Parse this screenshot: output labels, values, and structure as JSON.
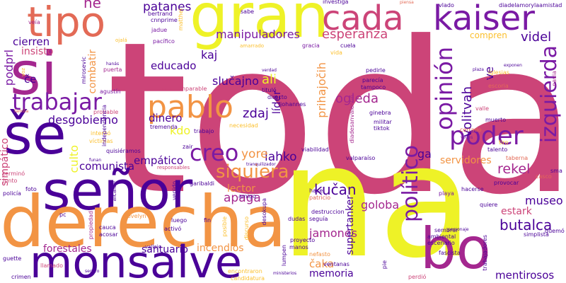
{
  "colors": {
    "background": "#ffffff",
    "purple": "#4a0098",
    "violet": "#7a1aa4",
    "magenta": "#a4278f",
    "pink": "#cc4478",
    "coral": "#e36a56",
    "orange": "#f29444",
    "amber": "#fbbf2c",
    "yellow": "#eef227"
  },
  "words": {
    "toda": "toda",
    "na": "na",
    "senor": "señor",
    "derecha": "derecha",
    "monsalve": "monsalve",
    "gran": "gran",
    "si": "si",
    "se": "še",
    "bo": "bo",
    "tipo": "tipo",
    "cada": "cada",
    "kaiser": "kaiser",
    "izquierda": "izquierda",
    "pablo": "pablo",
    "poder": "poder",
    "opinion": "opinión",
    "politico": "político",
    "trabajar": "trabajar",
    "creo": "creo",
    "siquiera": "siquiera",
    "esperanza": "esperanza",
    "manipuladores": "manipuladores",
    "patanes": "patanes",
    "ne": "ne",
    "videl": "videl",
    "rekel": "rekel",
    "butalca": "butalca",
    "kucan": "kučan",
    "ogleda": "ogleda",
    "slucajno": "slučajno",
    "educado": "educado",
    "kaj": "kaj",
    "zdaj": "zdaj",
    "ali": "ali",
    "prihajocih": "prihajočih",
    "lider": "líder",
    "volitvah": "volitvah",
    "ve": "ve",
    "desgobierno": "desgobierno",
    "dinero": "dinero",
    "kdo": "kdo",
    "empatico": "empático",
    "lahko": "lahko",
    "yore": "yore",
    "comunista": "comunista",
    "apaga": "apaga",
    "lector": "lector",
    "jamones": "jamones",
    "caka": "čaka",
    "memoria": "memoria",
    "incendios": "incendios",
    "santuario": "santuario",
    "forestales": "forestales",
    "mentirosos": "mentirosos",
    "goloba": "goloba",
    "museo": "museo",
    "estark": "estark",
    "servidores": "servidores",
    "supertanker": "supertanker",
    "cierren": "cierren",
    "insisto": "insisto",
    "podprl": "podprl",
    "ce": "če",
    "combatir": "combatir",
    "culto": "culto",
    "simpatico": "simpático",
    "ga": "ga",
    "compren": "compren",
    "diadelamoryla": "diadelamorylaamistad",
    "investiga": "investiga",
    "vlado": "vlado",
    "piensa": "piensa",
    "vela": "veía",
    "bertrand": "bertrand",
    "cnnprime": "cnnprime",
    "matthei": "matthei",
    "jadue": "jadue",
    "sabe": "sabe",
    "ojala": "ojalá",
    "pacifico": "pacífico",
    "gracia": "gracia",
    "cuela": "cuela",
    "vida": "vida",
    "amarrado": "amarrado",
    "hanas": "hanás",
    "puerta": "puerta",
    "mirosevic": "mirosevic",
    "voz": "voz",
    "agustin": "agustín",
    "kaiserimparable": "kaiserimparable",
    "titulo": "tituló",
    "directo": "directo",
    "johannes": "johannes",
    "paricia": "parecía",
    "tampoco": "tampoco",
    "pedirle": "pedirle",
    "verdad": "verdad",
    "iglesias": "iglesias",
    "verdadero": "verdadero",
    "escoria": "escoria",
    "navia": "navia",
    "plaza": "plaza",
    "valle": "valle",
    "muerto": "muerto",
    "cerrado": "cerrado",
    "veces": "veces",
    "tiro": "tiro",
    "talento": "talento",
    "taberna": "taberna",
    "sma": "sma",
    "casco": "casco",
    "ginebra": "ginebra",
    "militar": "militar",
    "tiktok": "tiktok",
    "necesidad": "necesidad",
    "diadesanvalentin": "diadesanvalentin",
    "familia": "familia",
    "termino": "terminó",
    "junto": "junto",
    "policia": "policía",
    "foto": "foto",
    "probable": "probable",
    "intento": "intentó",
    "victimas": "víctimas",
    "independencia": "independencia",
    "tremenda": "tremenda",
    "trabajo": "trabajo",
    "zair": "zair",
    "quisieramos": "quisiéramos",
    "funan": "funan",
    "viabilidad": "viabilidad",
    "valparaiso": "valparaíso",
    "garibaldi": "garibaldi",
    "alcalde": "alcalde",
    "venido": "venido",
    "responsables": "responsables",
    "tranquilizador": "tranquilizador",
    "amigo": "amigo",
    "fin": "fin",
    "hace": "hace",
    "patricio": "patricio",
    "playa": "playa",
    "hacerse": "hacerse",
    "quiere": "quiere",
    "pc": "pc",
    "evelyn": "evelyn",
    "cauca": "cauca",
    "acosar": "acosar",
    "activo": "activó",
    "luego": "luego",
    "posible": "posible",
    "discurso": "discurso",
    "desokupa": "desokupa",
    "dudas": "dudas",
    "seguia": "seguía",
    "destruccion": "destruccion",
    "ambiental": "ambiental",
    "escenario": "escenario",
    "manos": "manos",
    "fascista": "fascista",
    "nefasto": "nefasto",
    "lumpen": "lumpen",
    "encontraron": "encontraron",
    "candidatura": "candidatura",
    "crimen": "crimen",
    "llamado": "llamado",
    "perdio": "perdió",
    "vallejo": "vallejo",
    "propiedad": "propiedad",
    "guette": "guette",
    "seguro": "seguro",
    "simplista": "simplista",
    "quemo": "quemó",
    "trabajadores": "trabajadores",
    "sembrar": "sembrar",
    "personaje": "personaje",
    "exponen": "exponen",
    "provocar": "provocar",
    "ventanas": "ventanas",
    "pie": "pie",
    "ministerios": "ministerios",
    "proyecto": "proyecto"
  }
}
